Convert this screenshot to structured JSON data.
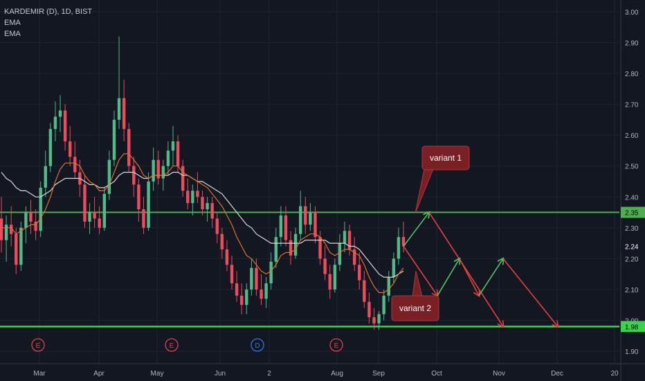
{
  "legend": {
    "symbol": "KARDEMIR (D), 1D, BIST",
    "indicators": [
      "EMA",
      "EMA"
    ]
  },
  "colors": {
    "background": "#131722",
    "grid": "#1f2430",
    "up": "#53b987",
    "down": "#eb4d5c",
    "ema_fast": "#e0712c",
    "ema_slow": "#d9d9d9",
    "support": "#39d44a",
    "resistance": "#4caf50",
    "arrow_down": "#e84040",
    "arrow_up": "#52c85f",
    "callout": "#7a1f24"
  },
  "chart_data": {
    "type": "candlestick",
    "y_axis": {
      "ylim": [
        1.86,
        3.02
      ],
      "ticks": [
        "1.90",
        "2.00",
        "2.10",
        "2.20",
        "2.30",
        "2.40",
        "2.50",
        "2.60",
        "2.70",
        "2.80",
        "2.90",
        "3.00"
      ]
    },
    "x_axis": {
      "ticks": [
        "Mar",
        "Apr",
        "May",
        "Jun",
        "2",
        "Aug",
        "Sep",
        "Oct",
        "Nov",
        "Dec",
        "20"
      ]
    },
    "price_labels": [
      {
        "value": 2.35,
        "label": "2.35",
        "color": "#4caf50"
      },
      {
        "value": 2.24,
        "label": "2.24",
        "color": "#ffffff"
      },
      {
        "value": 1.98,
        "label": "1.98",
        "color": "#39d44a"
      }
    ],
    "horizontal_lines": [
      {
        "name": "resistance",
        "value": 2.35
      },
      {
        "name": "support",
        "value": 1.98
      }
    ],
    "events": [
      {
        "label": "E",
        "near": "Mar"
      },
      {
        "label": "E",
        "near": "May"
      },
      {
        "label": "D",
        "near": "Jun"
      },
      {
        "label": "E",
        "near": "Aug"
      }
    ],
    "candles": [
      [
        2.33,
        2.4,
        2.22,
        2.26
      ],
      [
        2.26,
        2.34,
        2.19,
        2.31
      ],
      [
        2.31,
        2.37,
        2.24,
        2.28
      ],
      [
        2.28,
        2.3,
        2.15,
        2.18
      ],
      [
        2.18,
        2.32,
        2.16,
        2.3
      ],
      [
        2.3,
        2.37,
        2.25,
        2.35
      ],
      [
        2.35,
        2.39,
        2.28,
        2.32
      ],
      [
        2.32,
        2.36,
        2.26,
        2.29
      ],
      [
        2.29,
        2.45,
        2.27,
        2.43
      ],
      [
        2.43,
        2.55,
        2.4,
        2.5
      ],
      [
        2.5,
        2.64,
        2.48,
        2.62
      ],
      [
        2.62,
        2.71,
        2.58,
        2.66
      ],
      [
        2.66,
        2.73,
        2.61,
        2.68
      ],
      [
        2.68,
        2.7,
        2.55,
        2.58
      ],
      [
        2.58,
        2.63,
        2.5,
        2.53
      ],
      [
        2.53,
        2.58,
        2.46,
        2.48
      ],
      [
        2.48,
        2.52,
        2.4,
        2.44
      ],
      [
        2.44,
        2.47,
        2.3,
        2.32
      ],
      [
        2.32,
        2.38,
        2.28,
        2.35
      ],
      [
        2.35,
        2.4,
        2.3,
        2.33
      ],
      [
        2.33,
        2.37,
        2.28,
        2.3
      ],
      [
        2.3,
        2.43,
        2.29,
        2.41
      ],
      [
        2.41,
        2.55,
        2.39,
        2.52
      ],
      [
        2.52,
        2.68,
        2.5,
        2.65
      ],
      [
        2.65,
        2.92,
        2.62,
        2.72
      ],
      [
        2.72,
        2.78,
        2.58,
        2.62
      ],
      [
        2.62,
        2.64,
        2.48,
        2.5
      ],
      [
        2.5,
        2.53,
        2.4,
        2.44
      ],
      [
        2.44,
        2.46,
        2.32,
        2.36
      ],
      [
        2.36,
        2.4,
        2.28,
        2.3
      ],
      [
        2.3,
        2.48,
        2.29,
        2.45
      ],
      [
        2.45,
        2.56,
        2.42,
        2.52
      ],
      [
        2.52,
        2.55,
        2.44,
        2.46
      ],
      [
        2.46,
        2.52,
        2.42,
        2.5
      ],
      [
        2.5,
        2.58,
        2.47,
        2.55
      ],
      [
        2.55,
        2.63,
        2.5,
        2.58
      ],
      [
        2.58,
        2.6,
        2.48,
        2.5
      ],
      [
        2.5,
        2.52,
        2.4,
        2.42
      ],
      [
        2.42,
        2.46,
        2.36,
        2.38
      ],
      [
        2.38,
        2.44,
        2.34,
        2.42
      ],
      [
        2.42,
        2.48,
        2.38,
        2.4
      ],
      [
        2.4,
        2.42,
        2.34,
        2.36
      ],
      [
        2.36,
        2.4,
        2.32,
        2.38
      ],
      [
        2.38,
        2.4,
        2.3,
        2.33
      ],
      [
        2.33,
        2.35,
        2.25,
        2.28
      ],
      [
        2.28,
        2.3,
        2.2,
        2.23
      ],
      [
        2.23,
        2.26,
        2.16,
        2.18
      ],
      [
        2.18,
        2.21,
        2.1,
        2.12
      ],
      [
        2.12,
        2.16,
        2.06,
        2.08
      ],
      [
        2.08,
        2.12,
        2.02,
        2.05
      ],
      [
        2.05,
        2.12,
        2.02,
        2.1
      ],
      [
        2.1,
        2.2,
        2.08,
        2.17
      ],
      [
        2.17,
        2.2,
        2.08,
        2.1
      ],
      [
        2.1,
        2.15,
        2.05,
        2.07
      ],
      [
        2.07,
        2.14,
        2.04,
        2.12
      ],
      [
        2.12,
        2.22,
        2.1,
        2.19
      ],
      [
        2.19,
        2.3,
        2.17,
        2.27
      ],
      [
        2.27,
        2.37,
        2.24,
        2.34
      ],
      [
        2.34,
        2.37,
        2.24,
        2.26
      ],
      [
        2.26,
        2.29,
        2.18,
        2.21
      ],
      [
        2.21,
        2.3,
        2.2,
        2.28
      ],
      [
        2.28,
        2.42,
        2.26,
        2.37
      ],
      [
        2.37,
        2.4,
        2.28,
        2.31
      ],
      [
        2.31,
        2.38,
        2.29,
        2.35
      ],
      [
        2.35,
        2.37,
        2.25,
        2.27
      ],
      [
        2.27,
        2.29,
        2.18,
        2.2
      ],
      [
        2.2,
        2.24,
        2.13,
        2.15
      ],
      [
        2.15,
        2.18,
        2.07,
        2.1
      ],
      [
        2.1,
        2.2,
        2.09,
        2.18
      ],
      [
        2.18,
        2.28,
        2.16,
        2.25
      ],
      [
        2.25,
        2.32,
        2.22,
        2.29
      ],
      [
        2.29,
        2.31,
        2.21,
        2.23
      ],
      [
        2.23,
        2.27,
        2.16,
        2.18
      ],
      [
        2.18,
        2.22,
        2.1,
        2.13
      ],
      [
        2.13,
        2.16,
        2.04,
        2.06
      ],
      [
        2.06,
        2.09,
        1.99,
        2.01
      ],
      [
        2.01,
        2.04,
        1.97,
        1.99
      ],
      [
        1.99,
        2.03,
        1.97,
        2.02
      ],
      [
        2.02,
        2.1,
        2.0,
        2.08
      ],
      [
        2.08,
        2.16,
        2.06,
        2.14
      ],
      [
        2.14,
        2.22,
        2.12,
        2.2
      ],
      [
        2.2,
        2.3,
        2.18,
        2.27
      ],
      [
        2.27,
        2.32,
        2.22,
        2.24
      ]
    ],
    "ema_fast": [
      2.3,
      2.3,
      2.3,
      2.28,
      2.29,
      2.3,
      2.31,
      2.31,
      2.33,
      2.36,
      2.4,
      2.45,
      2.49,
      2.51,
      2.51,
      2.51,
      2.5,
      2.47,
      2.45,
      2.44,
      2.42,
      2.42,
      2.44,
      2.48,
      2.52,
      2.54,
      2.54,
      2.52,
      2.5,
      2.47,
      2.46,
      2.47,
      2.47,
      2.47,
      2.48,
      2.5,
      2.5,
      2.48,
      2.47,
      2.46,
      2.45,
      2.44,
      2.43,
      2.41,
      2.39,
      2.37,
      2.34,
      2.31,
      2.27,
      2.24,
      2.21,
      2.2,
      2.18,
      2.16,
      2.15,
      2.16,
      2.18,
      2.21,
      2.22,
      2.22,
      2.23,
      2.26,
      2.27,
      2.28,
      2.28,
      2.27,
      2.25,
      2.22,
      2.21,
      2.22,
      2.23,
      2.23,
      2.22,
      2.21,
      2.18,
      2.14,
      2.11,
      2.09,
      2.09,
      2.1,
      2.12,
      2.15,
      2.17
    ],
    "ema_slow": [
      2.48,
      2.46,
      2.45,
      2.43,
      2.42,
      2.42,
      2.41,
      2.4,
      2.4,
      2.41,
      2.42,
      2.44,
      2.45,
      2.46,
      2.46,
      2.46,
      2.46,
      2.45,
      2.44,
      2.44,
      2.43,
      2.43,
      2.44,
      2.45,
      2.47,
      2.48,
      2.48,
      2.48,
      2.47,
      2.46,
      2.46,
      2.47,
      2.47,
      2.47,
      2.47,
      2.48,
      2.48,
      2.47,
      2.47,
      2.46,
      2.45,
      2.45,
      2.44,
      2.43,
      2.42,
      2.41,
      2.39,
      2.37,
      2.35,
      2.33,
      2.31,
      2.3,
      2.28,
      2.27,
      2.26,
      2.25,
      2.25,
      2.25,
      2.25,
      2.25,
      2.25,
      2.25,
      2.26,
      2.26,
      2.26,
      2.26,
      2.26,
      2.25,
      2.25,
      2.25,
      2.25,
      2.24,
      2.24,
      2.23,
      2.21,
      2.19,
      2.17,
      2.15,
      2.14,
      2.14,
      2.14,
      2.15,
      2.16
    ],
    "projection": {
      "variant_1": {
        "label": "variant 1",
        "path_values": [
          2.24,
          2.35
        ]
      },
      "variant_2": {
        "label": "variant 2"
      },
      "arrows": [
        {
          "kind": "down",
          "from": 2.35,
          "to": 1.98
        },
        {
          "kind": "down",
          "from": 2.24,
          "to": 2.08
        },
        {
          "kind": "up",
          "from": 2.08,
          "to": 2.2
        },
        {
          "kind": "down",
          "from": 2.2,
          "to": 2.08
        },
        {
          "kind": "up",
          "from": 2.08,
          "to": 2.2
        },
        {
          "kind": "down",
          "from": 2.2,
          "to": 1.98
        }
      ]
    }
  }
}
